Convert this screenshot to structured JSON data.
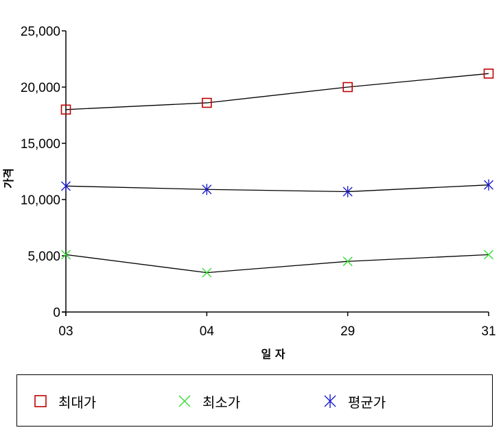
{
  "chart_data": {
    "type": "line",
    "categories": [
      "03",
      "04",
      "29",
      "31"
    ],
    "xlabel": "일 자",
    "ylabel": "가격",
    "ylim": [
      0,
      25000
    ],
    "yticks": [
      0,
      5000,
      10000,
      15000,
      20000,
      25000
    ],
    "ytick_labels": [
      "0",
      "5,000",
      "10,000",
      "15,000",
      "20,000",
      "25,000"
    ],
    "grid": false,
    "legend_position": "bottom",
    "series": [
      {
        "name": "최대가",
        "marker": "square",
        "color": "#c00000",
        "values": [
          18000,
          18600,
          20000,
          21200
        ]
      },
      {
        "name": "최소가",
        "marker": "x",
        "color": "#33dd33",
        "values": [
          5100,
          3500,
          4500,
          5100
        ]
      },
      {
        "name": "평균가",
        "marker": "asterisk",
        "color": "#1a1acc",
        "values": [
          11200,
          10900,
          10700,
          11300
        ]
      }
    ]
  }
}
